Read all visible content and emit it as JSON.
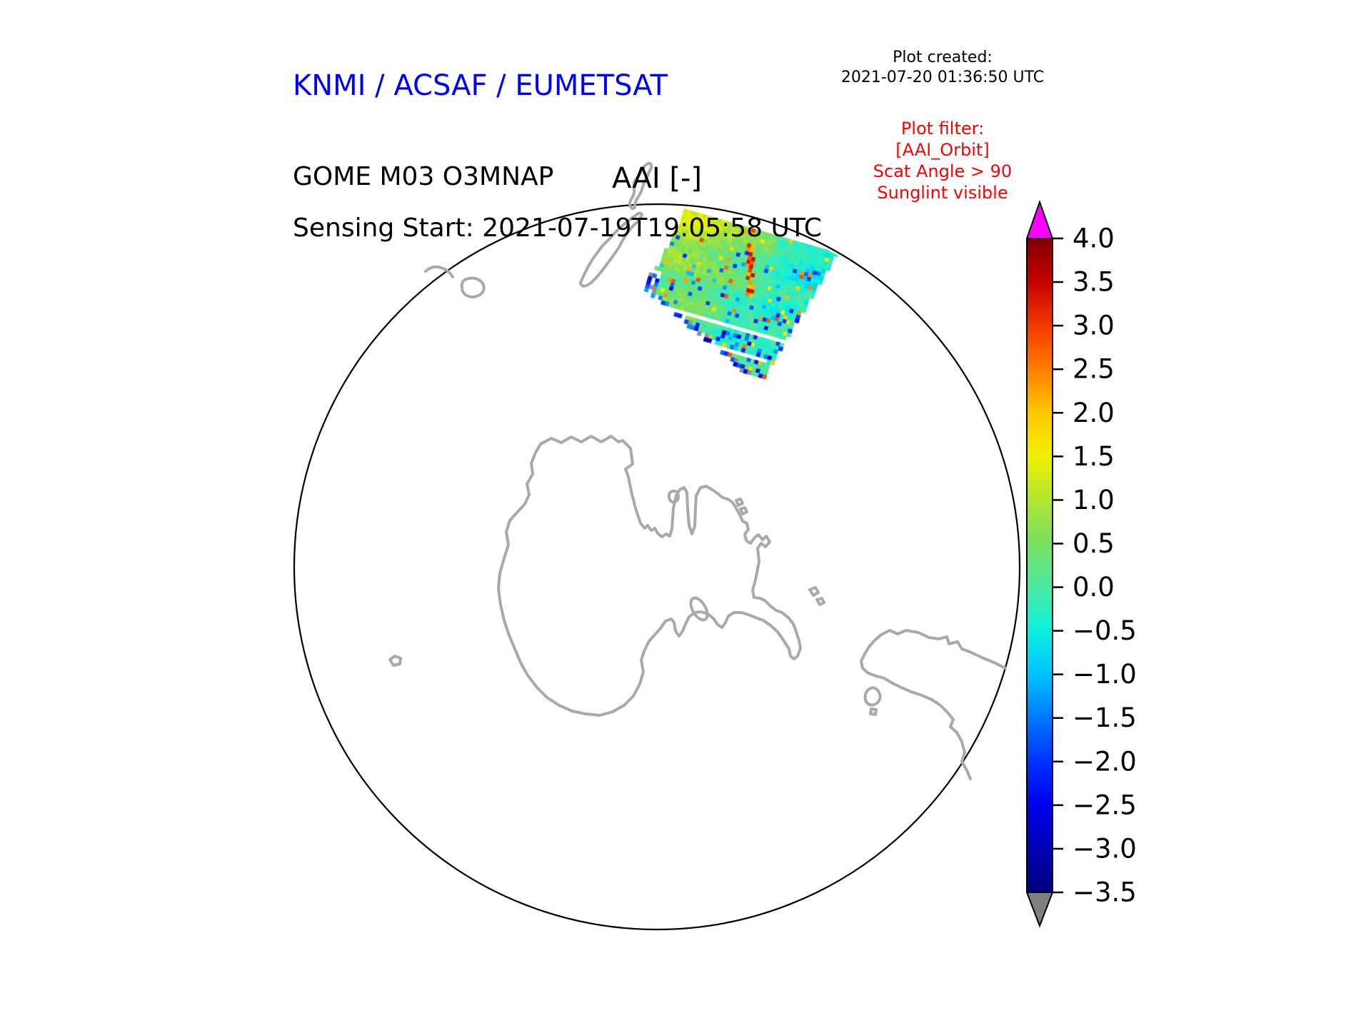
{
  "header": {
    "brand": {
      "text": "KNMI / ACSAF / EUMETSAT",
      "color": "#0000ff"
    },
    "created": {
      "label": "Plot created:",
      "timestamp": "2021-07-20 01:36:50 UTC"
    },
    "product": "GOME M03 O3MNAP",
    "sensing": "Sensing Start: 2021-07-19T19:05:58 UTC",
    "filter": {
      "color": "#ff0000",
      "lines": [
        "Plot filter:",
        "[AAI_Orbit]",
        "Scat Angle > 90",
        "Sunglint visible"
      ]
    }
  },
  "map": {
    "title": "AAI [-]",
    "boundary_color": "#000000",
    "coastline_color": "#a9a9a9",
    "ocean_color": "#ffffff"
  },
  "chart_data": {
    "type": "heatmap",
    "title": "AAI [-]",
    "projection": "south polar stereographic view (Antarctica centered)",
    "visible_land": [
      "Antarctica",
      "Antarctic Peninsula",
      "New Zealand",
      "Tierra del Fuego / South America tip"
    ],
    "colorbar": {
      "orientation": "vertical",
      "units": "AAI [-]",
      "range": [
        -3.5,
        4.0
      ],
      "tick_step": 0.5,
      "ticks": [
        {
          "label": "4.0",
          "value": 4.0
        },
        {
          "label": "3.5",
          "value": 3.5
        },
        {
          "label": "3.0",
          "value": 3.0
        },
        {
          "label": "2.5",
          "value": 2.5
        },
        {
          "label": "2.0",
          "value": 2.0
        },
        {
          "label": "1.5",
          "value": 1.5
        },
        {
          "label": "1.0",
          "value": 1.0
        },
        {
          "label": "0.5",
          "value": 0.5
        },
        {
          "label": "0.0",
          "value": 0.0
        },
        {
          "label": "−0.5",
          "value": -0.5
        },
        {
          "label": "−1.0",
          "value": -1.0
        },
        {
          "label": "−1.5",
          "value": -1.5
        },
        {
          "label": "−2.0",
          "value": -2.0
        },
        {
          "label": "−2.5",
          "value": -2.5
        },
        {
          "label": "−3.0",
          "value": -3.0
        },
        {
          "label": "−3.5",
          "value": -3.5
        }
      ],
      "over_arrow_color": "#ff00ff",
      "under_arrow_color": "#808080",
      "stops": [
        {
          "value": -3.5,
          "color": "#000080"
        },
        {
          "value": -3.0,
          "color": "#0000b4"
        },
        {
          "value": -2.5,
          "color": "#0000ea"
        },
        {
          "value": -2.0,
          "color": "#0032ff"
        },
        {
          "value": -1.5,
          "color": "#0078ff"
        },
        {
          "value": -1.0,
          "color": "#00c3ff"
        },
        {
          "value": -0.5,
          "color": "#0cf0dd"
        },
        {
          "value": 0.0,
          "color": "#4ce8a4"
        },
        {
          "value": 0.5,
          "color": "#78e05f"
        },
        {
          "value": 1.0,
          "color": "#b2e632"
        },
        {
          "value": 1.5,
          "color": "#eef000"
        },
        {
          "value": 2.0,
          "color": "#ffc800"
        },
        {
          "value": 2.5,
          "color": "#ff7d00"
        },
        {
          "value": 3.0,
          "color": "#f13a00"
        },
        {
          "value": 3.5,
          "color": "#c80000"
        },
        {
          "value": 4.0,
          "color": "#7f0000"
        }
      ]
    },
    "swath": {
      "description": "Single GOME-2 (Metop-A) orbit swath crossing the top of the polar view, north-east of New Zealand",
      "dominant_value_range": [
        -0.5,
        1.0
      ],
      "speckle_value_range": [
        -2.5,
        3.5
      ],
      "gap_color": "#ffffff",
      "edge_speckle_color": "#8b8f96",
      "red_streak_value": 3.0
    }
  }
}
